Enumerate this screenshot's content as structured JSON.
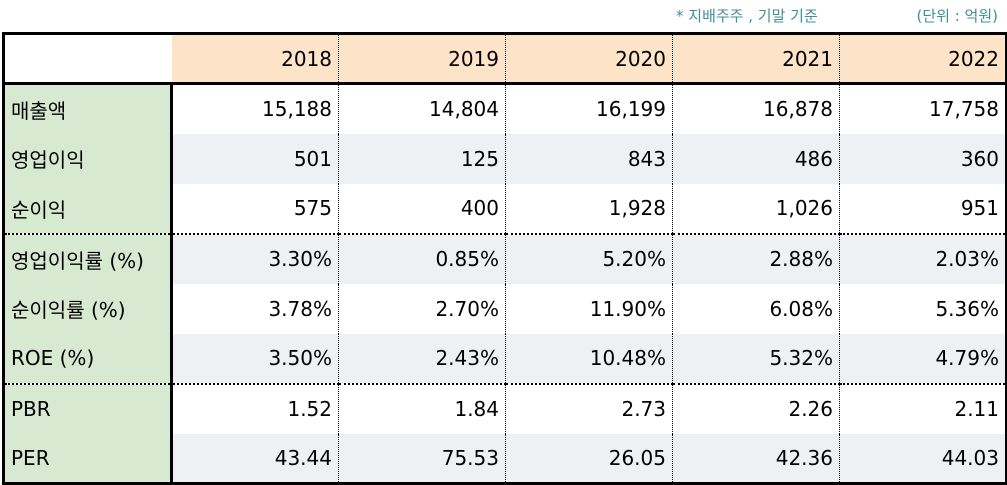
{
  "notes": {
    "basis": "* 지배주주 , 기말 기준",
    "unit": "(단위 : 억원)"
  },
  "table": {
    "years": [
      "2018",
      "2019",
      "2020",
      "2021",
      "2022"
    ],
    "rows": [
      {
        "label": "매출액",
        "values": [
          "15,188",
          "14,804",
          "16,199",
          "16,878",
          "17,758"
        ]
      },
      {
        "label": "영업이익",
        "values": [
          "501",
          "125",
          "843",
          "486",
          "360"
        ]
      },
      {
        "label": "순이익",
        "values": [
          "575",
          "400",
          "1,928",
          "1,026",
          "951"
        ]
      },
      {
        "label": "영업이익률 (%)",
        "values": [
          "3.30%",
          "0.85%",
          "5.20%",
          "2.88%",
          "2.03%"
        ]
      },
      {
        "label": "순이익률 (%)",
        "values": [
          "3.78%",
          "2.70%",
          "11.90%",
          "6.08%",
          "5.36%"
        ]
      },
      {
        "label": "ROE (%)",
        "values": [
          "3.50%",
          "2.43%",
          "10.48%",
          "5.32%",
          "4.79%"
        ]
      },
      {
        "label": "PBR",
        "values": [
          "1.52",
          "1.84",
          "2.73",
          "2.26",
          "2.11"
        ]
      },
      {
        "label": "PER",
        "values": [
          "43.44",
          "75.53",
          "26.05",
          "42.36",
          "44.03"
        ]
      }
    ]
  }
}
